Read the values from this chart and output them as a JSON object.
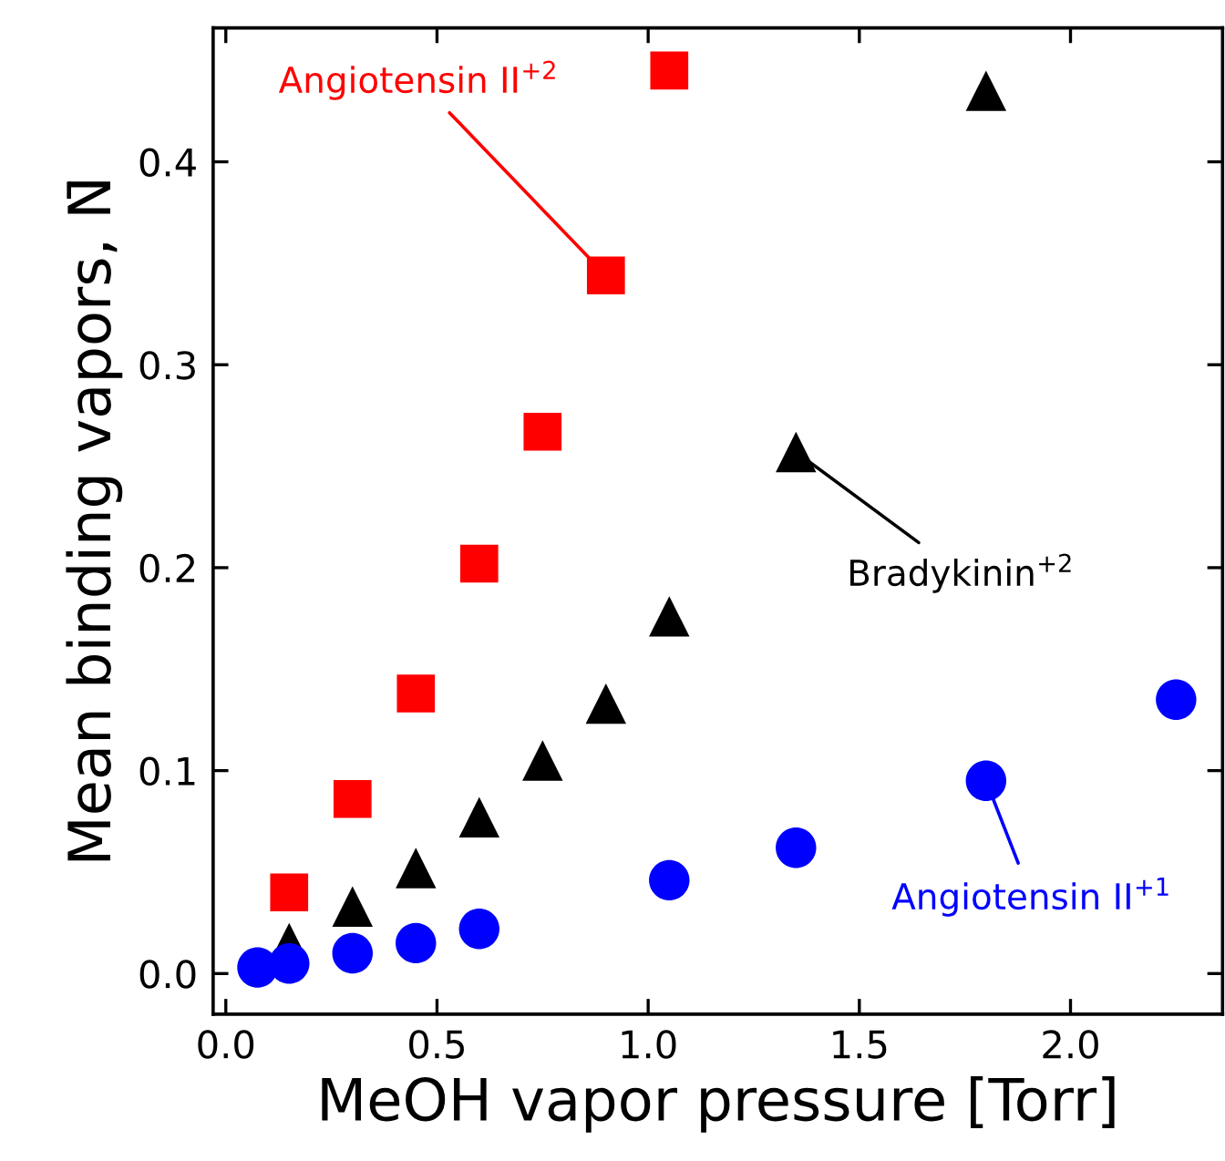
{
  "chart_data": {
    "type": "scatter",
    "xlabel": "MeOH vapor pressure [Torr]",
    "ylabel": "Mean binding vapors, N̄",
    "xlim": [
      -0.03,
      2.36
    ],
    "ylim": [
      -0.02,
      0.466
    ],
    "xticks": [
      {
        "value": 0,
        "label": "0.0"
      },
      0.5,
      {
        "value": 1,
        "label": "1.0"
      },
      1.5,
      {
        "value": 2,
        "label": "2.0"
      }
    ],
    "yticks": [
      {
        "value": 0,
        "label": "0.0"
      },
      0.1,
      0.2,
      0.3,
      0.4
    ],
    "grid": false,
    "series": [
      {
        "marker": "square",
        "color": "#ff0000",
        "x": [
          0.15,
          0.3,
          0.45,
          0.6,
          0.75,
          0.9,
          1.05
        ],
        "values": [
          0.04,
          0.086,
          0.138,
          0.202,
          0.267,
          0.344,
          0.445
        ]
      },
      {
        "marker": "triangle",
        "color": "#000000",
        "x": [
          0.15,
          0.3,
          0.45,
          0.6,
          0.75,
          0.9,
          1.05,
          1.35,
          1.8
        ],
        "values": [
          0.015,
          0.033,
          0.052,
          0.077,
          0.105,
          0.133,
          0.176,
          0.257,
          0.435
        ]
      },
      {
        "marker": "circle",
        "color": "#0000ff",
        "x": [
          0.075,
          0.15,
          0.3,
          0.45,
          0.6,
          1.05,
          1.35,
          1.8,
          2.25
        ],
        "values": [
          0.003,
          0.005,
          0.01,
          0.015,
          0.022,
          0.046,
          0.062,
          0.095,
          0.135
        ]
      }
    ],
    "annotations": [
      {
        "text": "Angiotensin II$^{+2}$",
        "x": 0.9,
        "y": 0.344
      },
      {
        "text": "Bradykinin$^{+2}$",
        "x": 1.35,
        "y": 0.257
      },
      {
        "text": "Angiotensin II$^{+1}$",
        "x": 1.8,
        "y": 0.095
      }
    ]
  }
}
